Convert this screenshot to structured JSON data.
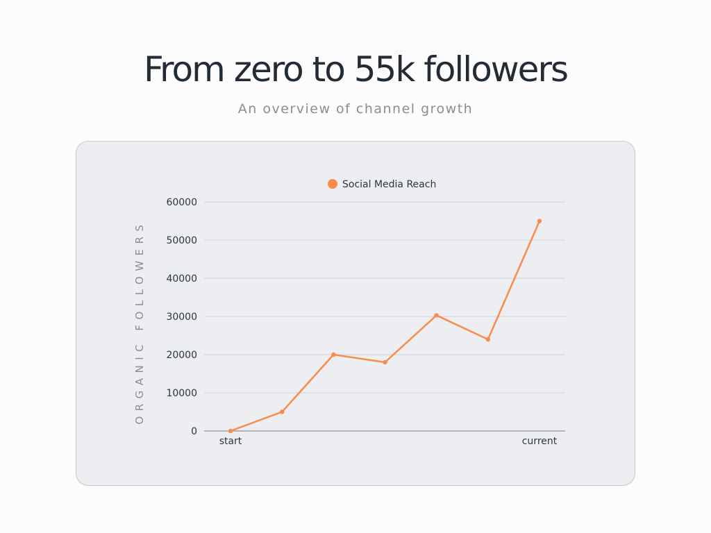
{
  "header": {
    "title": "From zero to 55k followers",
    "subtitle": "An overview of channel growth"
  },
  "colors": {
    "background": "#fcfcfc",
    "card": "#eceef1",
    "line": "#fa8c4b",
    "grid": "#cfd2d6",
    "text": "#232b35",
    "muted": "#8a8d94"
  },
  "chart_data": {
    "type": "line",
    "ylabel": "ORGANIC FOLLOWERS",
    "x_tick_labels": [
      "start",
      "",
      "",
      "",
      "",
      "",
      "current"
    ],
    "ylim": [
      0,
      60000
    ],
    "y_ticks": [
      0,
      10000,
      20000,
      30000,
      40000,
      50000,
      60000
    ],
    "grid": true,
    "legend_position": "top-center",
    "series": [
      {
        "name": "Social Media Reach",
        "color": "#fa8c4b",
        "values": [
          0,
          5000,
          20000,
          18000,
          30300,
          24000,
          55000
        ]
      }
    ]
  }
}
